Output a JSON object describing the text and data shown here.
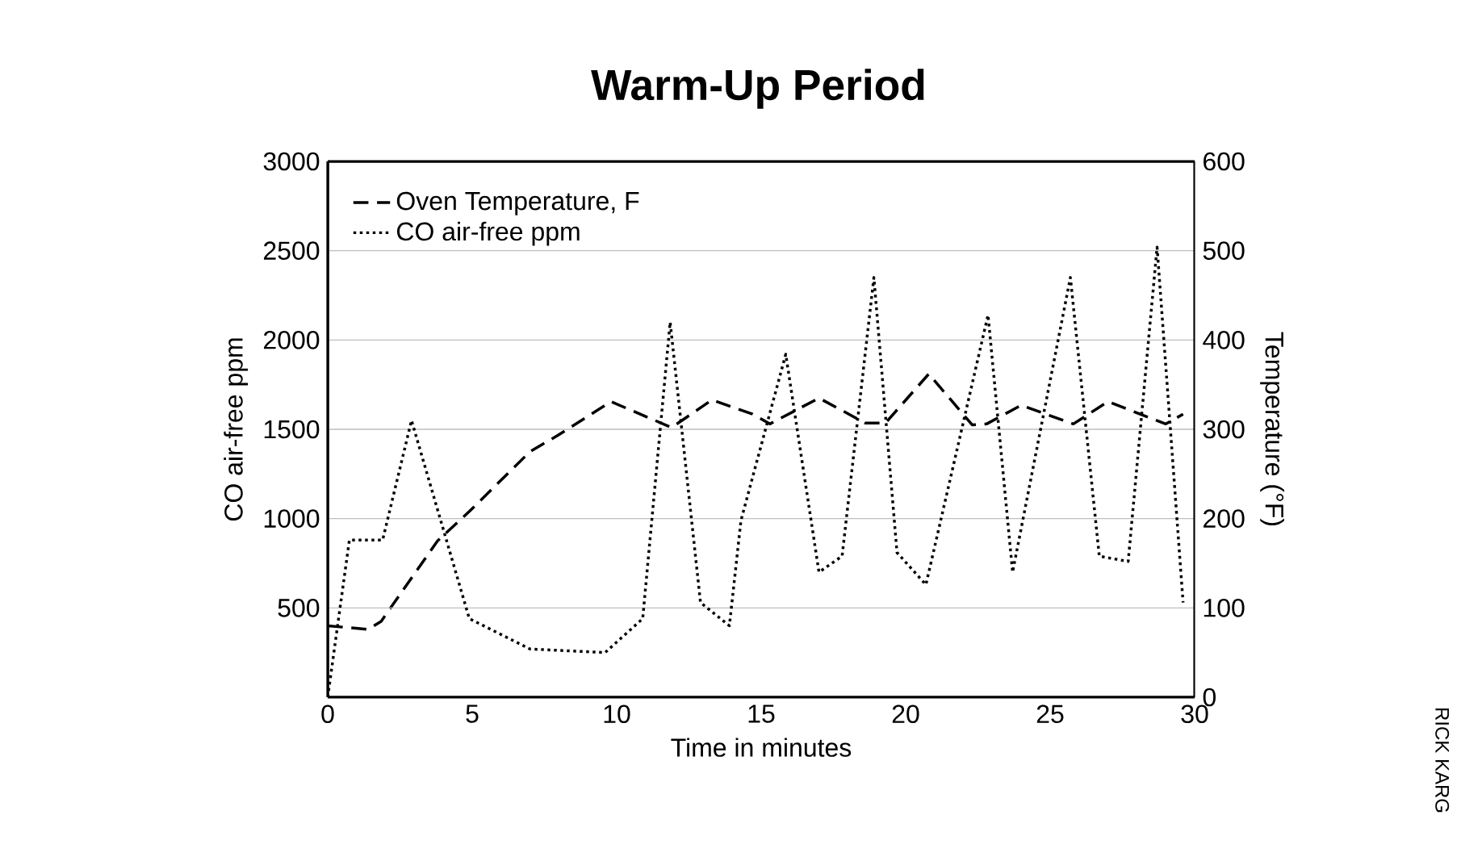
{
  "chart_data": {
    "type": "line",
    "title": "Warm-Up Period",
    "xlabel": "Time in minutes",
    "ylabel": "CO air-free ppm",
    "y2label": "Temperature (°F)",
    "xlim": [
      0,
      30
    ],
    "xticks": [
      0,
      5,
      10,
      15,
      20,
      25,
      30
    ],
    "ylim": [
      0,
      3000
    ],
    "yticks": [
      {
        "value": 0,
        "label": null
      },
      500,
      1000,
      1500,
      2000,
      2500,
      3000
    ],
    "y2lim": [
      0,
      600
    ],
    "y2ticks": [
      0,
      100,
      200,
      300,
      400,
      500,
      600
    ],
    "grid": "y",
    "legend": "top left",
    "marker": "none",
    "annotations": [
      "RICK KARG"
    ],
    "series": [
      {
        "name": "Oven Temperature, F",
        "color": "#000000",
        "axis": "y2",
        "line_style": "dashed",
        "x": [
          0,
          1.4,
          1.85,
          3.8,
          4.9,
          7,
          7.95,
          9.8,
          11.9,
          13.3,
          14.7,
          15.3,
          17,
          18.6,
          19.3,
          20.8,
          22.3,
          22.8,
          24,
          25.8,
          27,
          29,
          29.6
        ],
        "values": [
          80,
          76,
          85,
          175,
          208,
          275,
          293,
          331,
          302,
          333,
          317,
          306,
          335,
          307,
          307,
          362,
          305,
          306,
          327,
          306,
          331,
          306,
          317
        ]
      },
      {
        "name": "CO air-free ppm",
        "color": "#000000",
        "line_style": "dotted",
        "x": [
          0,
          0.75,
          1.9,
          2.9,
          4.9,
          7,
          9.6,
          10.9,
          11.5,
          11.85,
          12.9,
          13.9,
          14.3,
          15.85,
          17,
          17.8,
          18.9,
          19.7,
          20.7,
          22.85,
          23.7,
          25.7,
          26.7,
          27.7,
          28.7,
          29.6
        ],
        "values": [
          0,
          880,
          880,
          1550,
          440,
          270,
          250,
          440,
          1490,
          2100,
          530,
          400,
          990,
          1920,
          700,
          790,
          2350,
          810,
          630,
          2140,
          700,
          2350,
          790,
          760,
          2520,
          530
        ]
      }
    ]
  }
}
